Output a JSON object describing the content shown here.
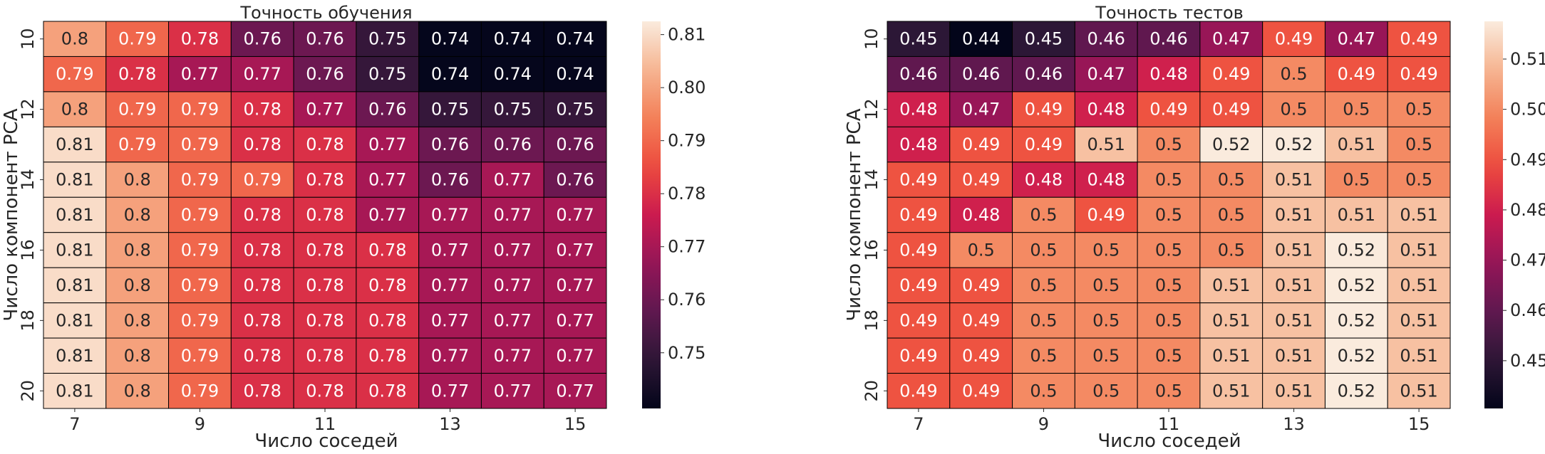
{
  "chart_data": [
    {
      "type": "heatmap",
      "title": "Точность обучения",
      "xlabel": "Число соседей",
      "ylabel": "Число компонент PCA",
      "x": [
        7,
        8,
        9,
        10,
        11,
        12,
        13,
        14,
        15
      ],
      "y": [
        10,
        11,
        12,
        13,
        14,
        15,
        16,
        17,
        18,
        19,
        20
      ],
      "x_tick_labels": [
        "7",
        "9",
        "11",
        "13",
        "15"
      ],
      "y_tick_labels": [
        "10",
        "12",
        "14",
        "16",
        "18",
        "20"
      ],
      "values": [
        [
          0.8,
          0.79,
          0.78,
          0.76,
          0.76,
          0.75,
          0.74,
          0.74,
          0.74
        ],
        [
          0.79,
          0.78,
          0.77,
          0.77,
          0.76,
          0.75,
          0.74,
          0.74,
          0.74
        ],
        [
          0.8,
          0.79,
          0.79,
          0.78,
          0.77,
          0.76,
          0.75,
          0.75,
          0.75
        ],
        [
          0.81,
          0.79,
          0.79,
          0.78,
          0.78,
          0.77,
          0.76,
          0.76,
          0.76
        ],
        [
          0.81,
          0.8,
          0.79,
          0.79,
          0.78,
          0.77,
          0.76,
          0.77,
          0.76
        ],
        [
          0.81,
          0.8,
          0.79,
          0.78,
          0.78,
          0.77,
          0.77,
          0.77,
          0.77
        ],
        [
          0.81,
          0.8,
          0.79,
          0.78,
          0.78,
          0.78,
          0.77,
          0.77,
          0.77
        ],
        [
          0.81,
          0.8,
          0.79,
          0.78,
          0.78,
          0.78,
          0.77,
          0.77,
          0.77
        ],
        [
          0.81,
          0.8,
          0.79,
          0.78,
          0.78,
          0.78,
          0.77,
          0.77,
          0.77
        ],
        [
          0.81,
          0.8,
          0.79,
          0.78,
          0.78,
          0.78,
          0.77,
          0.77,
          0.77
        ],
        [
          0.81,
          0.8,
          0.79,
          0.78,
          0.78,
          0.78,
          0.77,
          0.77,
          0.77
        ]
      ],
      "annotations": [
        [
          "0.8",
          "0.79",
          "0.78",
          "0.76",
          "0.76",
          "0.75",
          "0.74",
          "0.74",
          "0.74"
        ],
        [
          "0.79",
          "0.78",
          "0.77",
          "0.77",
          "0.76",
          "0.75",
          "0.74",
          "0.74",
          "0.74"
        ],
        [
          "0.8",
          "0.79",
          "0.79",
          "0.78",
          "0.77",
          "0.76",
          "0.75",
          "0.75",
          "0.75"
        ],
        [
          "0.81",
          "0.79",
          "0.79",
          "0.78",
          "0.78",
          "0.77",
          "0.76",
          "0.76",
          "0.76"
        ],
        [
          "0.81",
          "0.8",
          "0.79",
          "0.79",
          "0.78",
          "0.77",
          "0.76",
          "0.77",
          "0.76"
        ],
        [
          "0.81",
          "0.8",
          "0.79",
          "0.78",
          "0.78",
          "0.77",
          "0.77",
          "0.77",
          "0.77"
        ],
        [
          "0.81",
          "0.8",
          "0.79",
          "0.78",
          "0.78",
          "0.78",
          "0.77",
          "0.77",
          "0.77"
        ],
        [
          "0.81",
          "0.8",
          "0.79",
          "0.78",
          "0.78",
          "0.78",
          "0.77",
          "0.77",
          "0.77"
        ],
        [
          "0.81",
          "0.8",
          "0.79",
          "0.78",
          "0.78",
          "0.78",
          "0.77",
          "0.77",
          "0.77"
        ],
        [
          "0.81",
          "0.8",
          "0.79",
          "0.78",
          "0.78",
          "0.78",
          "0.77",
          "0.77",
          "0.77"
        ],
        [
          "0.81",
          "0.8",
          "0.79",
          "0.78",
          "0.78",
          "0.78",
          "0.77",
          "0.77",
          "0.77"
        ]
      ],
      "colormap": "rocket",
      "vmin": 0.7395,
      "vmax": 0.8125,
      "colorbar_ticks": [
        0.75,
        0.76,
        0.77,
        0.78,
        0.79,
        0.8,
        0.81
      ],
      "colorbar_tick_labels": [
        "0.75",
        "0.76",
        "0.77",
        "0.78",
        "0.79",
        "0.80",
        "0.81"
      ],
      "cell_edge_color": "#000000"
    },
    {
      "type": "heatmap",
      "title": "Точность тестов",
      "xlabel": "Число соседей",
      "ylabel": "Число компонент PCA",
      "x": [
        7,
        8,
        9,
        10,
        11,
        12,
        13,
        14,
        15
      ],
      "y": [
        10,
        11,
        12,
        13,
        14,
        15,
        16,
        17,
        18,
        19,
        20
      ],
      "x_tick_labels": [
        "7",
        "9",
        "11",
        "13",
        "15"
      ],
      "y_tick_labels": [
        "10",
        "12",
        "14",
        "16",
        "18",
        "20"
      ],
      "values": [
        [
          0.45,
          0.44,
          0.45,
          0.46,
          0.46,
          0.47,
          0.49,
          0.47,
          0.49
        ],
        [
          0.46,
          0.46,
          0.46,
          0.47,
          0.48,
          0.49,
          0.5,
          0.49,
          0.49
        ],
        [
          0.48,
          0.47,
          0.49,
          0.48,
          0.49,
          0.49,
          0.5,
          0.5,
          0.5
        ],
        [
          0.48,
          0.49,
          0.49,
          0.51,
          0.5,
          0.52,
          0.52,
          0.51,
          0.5
        ],
        [
          0.49,
          0.49,
          0.48,
          0.48,
          0.5,
          0.5,
          0.51,
          0.5,
          0.5
        ],
        [
          0.49,
          0.48,
          0.5,
          0.49,
          0.5,
          0.5,
          0.51,
          0.51,
          0.51
        ],
        [
          0.49,
          0.5,
          0.5,
          0.5,
          0.5,
          0.5,
          0.51,
          0.52,
          0.51
        ],
        [
          0.49,
          0.49,
          0.5,
          0.5,
          0.5,
          0.51,
          0.51,
          0.52,
          0.51
        ],
        [
          0.49,
          0.49,
          0.5,
          0.5,
          0.5,
          0.51,
          0.51,
          0.52,
          0.51
        ],
        [
          0.49,
          0.49,
          0.5,
          0.5,
          0.5,
          0.51,
          0.51,
          0.52,
          0.51
        ],
        [
          0.49,
          0.49,
          0.5,
          0.5,
          0.5,
          0.51,
          0.51,
          0.52,
          0.51
        ]
      ],
      "annotations": [
        [
          "0.45",
          "0.44",
          "0.45",
          "0.46",
          "0.46",
          "0.47",
          "0.49",
          "0.47",
          "0.49"
        ],
        [
          "0.46",
          "0.46",
          "0.46",
          "0.47",
          "0.48",
          "0.49",
          "0.5",
          "0.49",
          "0.49"
        ],
        [
          "0.48",
          "0.47",
          "0.49",
          "0.48",
          "0.49",
          "0.49",
          "0.5",
          "0.5",
          "0.5"
        ],
        [
          "0.48",
          "0.49",
          "0.49",
          "0.51",
          "0.5",
          "0.52",
          "0.52",
          "0.51",
          "0.5"
        ],
        [
          "0.49",
          "0.49",
          "0.48",
          "0.48",
          "0.5",
          "0.5",
          "0.51",
          "0.5",
          "0.5"
        ],
        [
          "0.49",
          "0.48",
          "0.5",
          "0.49",
          "0.5",
          "0.5",
          "0.51",
          "0.51",
          "0.51"
        ],
        [
          "0.49",
          "0.5",
          "0.5",
          "0.5",
          "0.5",
          "0.5",
          "0.51",
          "0.52",
          "0.51"
        ],
        [
          "0.49",
          "0.49",
          "0.5",
          "0.5",
          "0.5",
          "0.51",
          "0.51",
          "0.52",
          "0.51"
        ],
        [
          "0.49",
          "0.49",
          "0.5",
          "0.5",
          "0.5",
          "0.51",
          "0.51",
          "0.52",
          "0.51"
        ],
        [
          "0.49",
          "0.49",
          "0.5",
          "0.5",
          "0.5",
          "0.51",
          "0.51",
          "0.52",
          "0.51"
        ],
        [
          "0.49",
          "0.49",
          "0.5",
          "0.5",
          "0.5",
          "0.51",
          "0.51",
          "0.52",
          "0.51"
        ]
      ],
      "colormap": "rocket",
      "vmin": 0.4405,
      "vmax": 0.5175,
      "colorbar_ticks": [
        0.45,
        0.46,
        0.47,
        0.48,
        0.49,
        0.5,
        0.51
      ],
      "colorbar_tick_labels": [
        "0.45",
        "0.46",
        "0.47",
        "0.48",
        "0.49",
        "0.50",
        "0.51"
      ],
      "cell_edge_color": "#000000"
    }
  ]
}
